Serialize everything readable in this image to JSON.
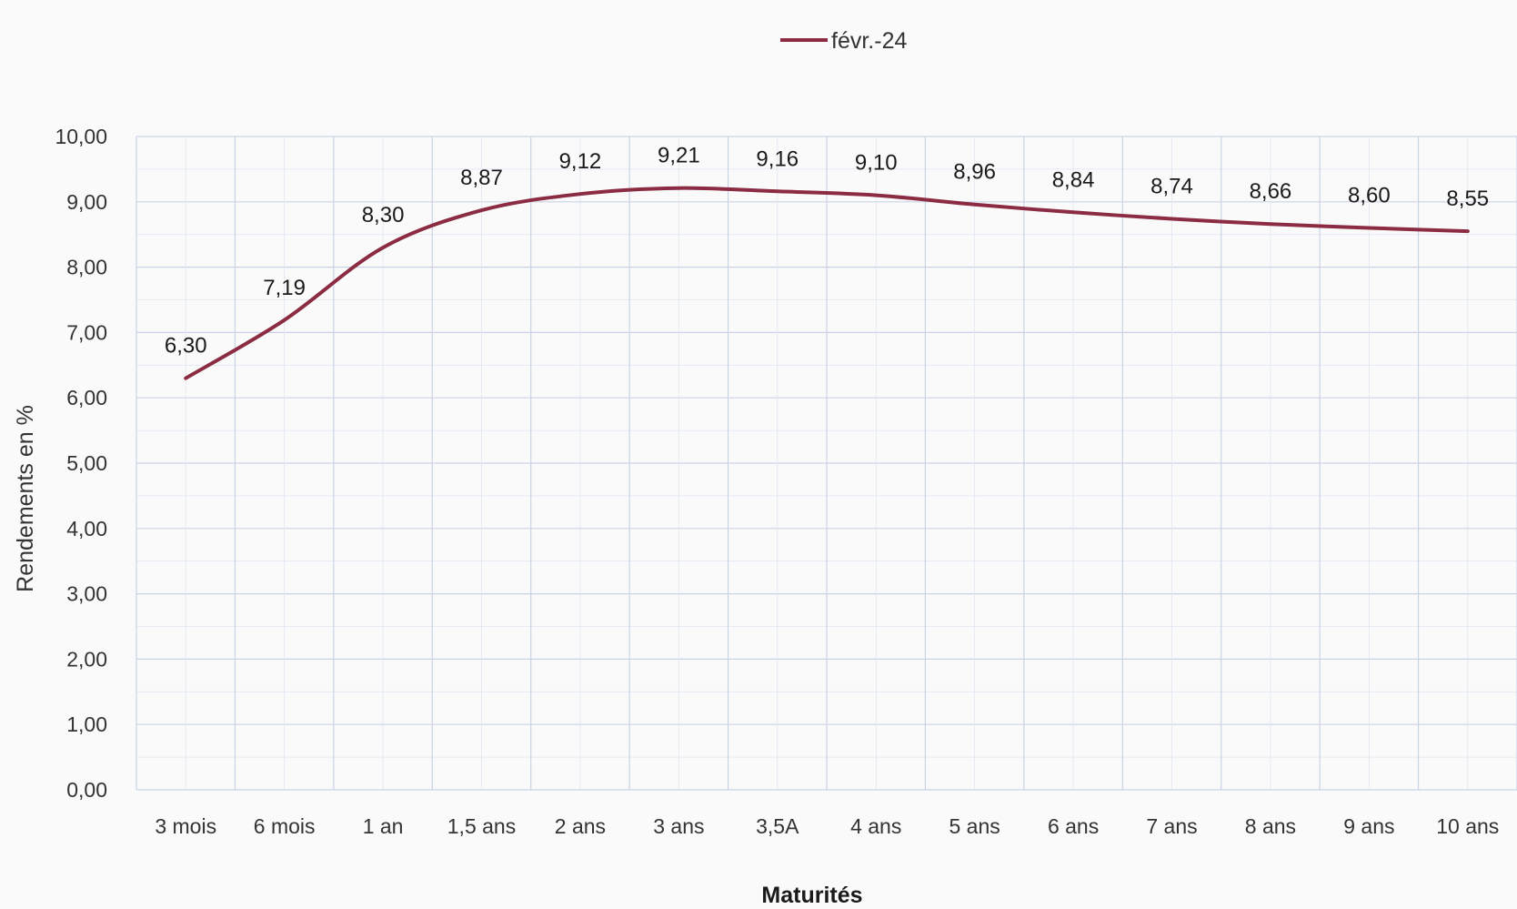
{
  "chart_data": {
    "type": "line",
    "title": "",
    "xlabel": "Maturités",
    "ylabel": "Rendements en %",
    "ylim": [
      0,
      10
    ],
    "yticks": [
      "0,00",
      "1,00",
      "2,00",
      "3,00",
      "4,00",
      "5,00",
      "6,00",
      "7,00",
      "8,00",
      "9,00",
      "10,00"
    ],
    "categories": [
      "3 mois",
      "6 mois",
      "1 an",
      "1,5 ans",
      "2 ans",
      "3 ans",
      "3,5A",
      "4 ans",
      "5 ans",
      "6 ans",
      "7 ans",
      "8 ans",
      "9 ans",
      "10 ans"
    ],
    "series": [
      {
        "name": "févr.-24",
        "color": "#8b2c43",
        "values": [
          6.3,
          7.19,
          8.3,
          8.87,
          9.12,
          9.21,
          9.16,
          9.1,
          8.96,
          8.84,
          8.74,
          8.66,
          8.6,
          8.55
        ],
        "labels": [
          "6,30",
          "7,19",
          "8,30",
          "8,87",
          "9,12",
          "9,21",
          "9,16",
          "9,10",
          "8,96",
          "8,84",
          "8,74",
          "8,66",
          "8,60",
          "8,55"
        ]
      }
    ],
    "grid": true,
    "legend_position": "top-center",
    "smooth": true
  }
}
